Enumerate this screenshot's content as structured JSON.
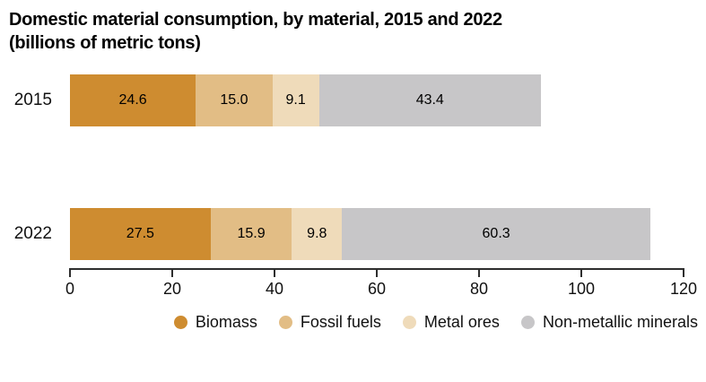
{
  "title": "Domestic material consumption, by material, 2015 and 2022",
  "subtitle": "(billions of metric tons)",
  "colors": {
    "background": "#ffffff",
    "axis": "#2e2e2e",
    "text": "#000000"
  },
  "chart_data": {
    "type": "bar",
    "orientation": "horizontal",
    "stacked": true,
    "title": "Domestic material consumption, by material, 2015 and 2022 (billions of metric tons)",
    "categories": [
      "2015",
      "2022"
    ],
    "series": [
      {
        "name": "Biomass",
        "color": "#CE8C30",
        "values": [
          24.6,
          27.5
        ]
      },
      {
        "name": "Fossil fuels",
        "color": "#E2BD85",
        "values": [
          15.0,
          15.9
        ]
      },
      {
        "name": "Metal ores",
        "color": "#EFDBBA",
        "values": [
          9.1,
          9.8
        ]
      },
      {
        "name": "Non-metallic minerals",
        "color": "#C7C6C8",
        "values": [
          43.4,
          60.3
        ]
      }
    ],
    "xlim": [
      0,
      120
    ],
    "x_ticks": [
      0,
      20,
      40,
      60,
      80,
      100,
      120
    ],
    "grid": false,
    "legend_position": "bottom",
    "value_labels_shown": true
  }
}
